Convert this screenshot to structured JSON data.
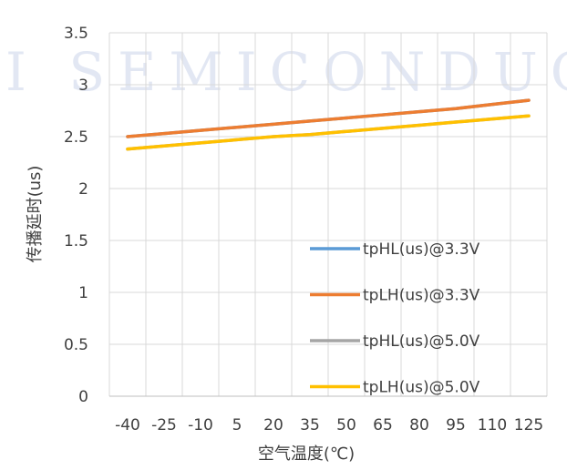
{
  "watermark": "I SEMICONDUCTO",
  "chart_data": {
    "type": "line",
    "title": "",
    "xlabel": "空气温度(℃)",
    "ylabel": "传播延时(us)",
    "categories": [
      "-40",
      "-25",
      "-10",
      "5",
      "20",
      "35",
      "50",
      "65",
      "80",
      "95",
      "110",
      "125"
    ],
    "ylim": [
      0,
      3.5
    ],
    "yticks": [
      "0",
      "0.5",
      "1",
      "1.5",
      "2",
      "2.5",
      "3",
      "3.5"
    ],
    "grid": true,
    "legend_position": "lower-right",
    "series": [
      {
        "name": "tpHL(us)@3.3V",
        "color": "#5b9bd5",
        "values": [
          2.5,
          2.53,
          2.56,
          2.59,
          2.62,
          2.65,
          2.68,
          2.71,
          2.74,
          2.77,
          2.81,
          2.85
        ]
      },
      {
        "name": "tpLH(us)@3.3V",
        "color": "#ed7d31",
        "values": [
          2.5,
          2.53,
          2.56,
          2.59,
          2.62,
          2.65,
          2.68,
          2.71,
          2.74,
          2.77,
          2.81,
          2.85
        ]
      },
      {
        "name": "tpHL(us)@5.0V",
        "color": "#a5a5a5",
        "values": [
          2.38,
          2.41,
          2.44,
          2.47,
          2.5,
          2.52,
          2.55,
          2.58,
          2.61,
          2.64,
          2.67,
          2.7
        ]
      },
      {
        "name": "tpLH(us)@5.0V",
        "color": "#ffc000",
        "values": [
          2.38,
          2.41,
          2.44,
          2.47,
          2.5,
          2.52,
          2.55,
          2.58,
          2.61,
          2.64,
          2.67,
          2.7
        ]
      }
    ]
  }
}
